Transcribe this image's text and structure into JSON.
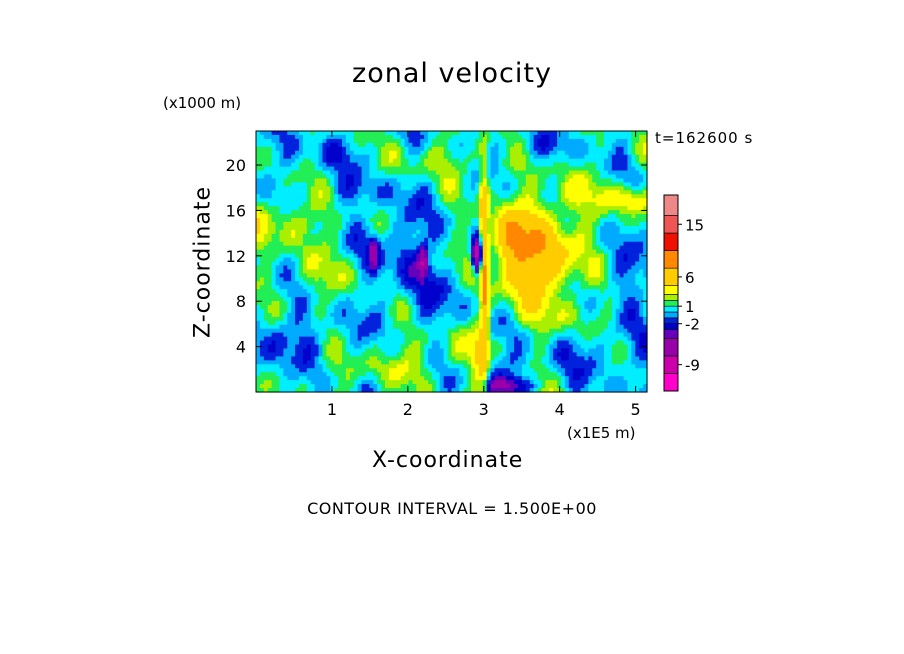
{
  "chart_data": {
    "type": "heatmap",
    "title": "zonal velocity",
    "xlabel": "X-coordinate",
    "ylabel": "Z-coordinate",
    "x_units": "(x1E5 m)",
    "y_units": "(x1000 m)",
    "time_label": "t=162600 s",
    "footer": "CONTOUR INTERVAL = 1.500E+00",
    "xlim": [
      0,
      5.15
    ],
    "ylim": [
      0,
      23
    ],
    "x_ticks": [
      "1",
      "2",
      "3",
      "4",
      "5"
    ],
    "y_ticks": [
      "4",
      "8",
      "12",
      "16",
      "20"
    ],
    "colorbar": {
      "min": -13.5,
      "max": 20,
      "levels": [
        -13.5,
        -10.5,
        -7.5,
        -4.5,
        -3,
        -2,
        -1,
        0,
        1,
        2,
        3,
        4.5,
        7.5,
        10.5,
        13.5,
        16.5,
        20
      ],
      "colors": [
        "#ff00cc",
        "#cc00aa",
        "#9900aa",
        "#6600bb",
        "#0000cc",
        "#0022dd",
        "#00aaff",
        "#00eeff",
        "#22ee55",
        "#aaee00",
        "#ffff00",
        "#ffcc00",
        "#ff8800",
        "#ee1100",
        "#ee5555",
        "#ee8888",
        "#ffbbbb"
      ],
      "tick_labels": [
        {
          "text": "15",
          "value": 15
        },
        {
          "text": "6",
          "value": 6
        },
        {
          "text": "1",
          "value": 1
        },
        {
          "text": "-2",
          "value": -2
        },
        {
          "text": "-9",
          "value": -9
        }
      ]
    },
    "field": {
      "background_value": 0.5,
      "features": [
        {
          "x": 3.7,
          "z": 12,
          "sx": 0.55,
          "sz": 4.5,
          "amp": 6.5
        },
        {
          "x": 3.35,
          "z": 13.5,
          "sx": 0.2,
          "sz": 2.2,
          "amp": 4
        },
        {
          "x": 3.0,
          "z": 10,
          "sx": 0.06,
          "sz": 9,
          "amp": 9
        },
        {
          "x": 2.92,
          "z": 12,
          "sx": 0.07,
          "sz": 1.5,
          "amp": -11
        },
        {
          "x": 2.97,
          "z": 8,
          "sx": 0.05,
          "sz": 4,
          "amp": -4
        },
        {
          "x": 2.92,
          "z": 3,
          "sx": 0.1,
          "sz": 3,
          "amp": 3.5
        },
        {
          "x": 3.3,
          "z": 0.6,
          "sx": 0.3,
          "sz": 0.8,
          "amp": -5
        },
        {
          "x": 3.2,
          "z": 2.2,
          "sx": 0.35,
          "sz": 1.2,
          "amp": -1.5
        },
        {
          "x": 0.35,
          "z": 15,
          "sx": 0.6,
          "sz": 2.2,
          "amp": 2.5
        },
        {
          "x": 0.9,
          "z": 10,
          "sx": 0.7,
          "sz": 2.5,
          "amp": 1.2
        },
        {
          "x": 1.9,
          "z": 12,
          "sx": 0.45,
          "sz": 4,
          "amp": -2.2
        },
        {
          "x": 1.55,
          "z": 12.3,
          "sx": 0.06,
          "sz": 1.2,
          "amp": -6
        },
        {
          "x": 2.2,
          "z": 11.5,
          "sx": 0.06,
          "sz": 1.3,
          "amp": -6
        },
        {
          "x": 1.35,
          "z": 17.5,
          "sx": 0.5,
          "sz": 1.5,
          "amp": -1.2
        },
        {
          "x": 2.4,
          "z": 7.5,
          "sx": 0.4,
          "sz": 3,
          "amp": -1.3
        },
        {
          "x": 2.3,
          "z": 4,
          "sx": 0.6,
          "sz": 2,
          "amp": 1.5
        },
        {
          "x": 0.6,
          "z": 5,
          "sx": 0.7,
          "sz": 2.5,
          "amp": -1.3
        },
        {
          "x": 1.6,
          "z": 2,
          "sx": 0.8,
          "sz": 1.5,
          "amp": 1.3
        },
        {
          "x": 4.2,
          "z": 6.5,
          "sx": 0.4,
          "sz": 1.5,
          "amp": 1.2
        },
        {
          "x": 4.5,
          "z": 3.5,
          "sx": 0.7,
          "sz": 2.5,
          "amp": -1.3
        },
        {
          "x": 4.95,
          "z": 17,
          "sx": 0.25,
          "sz": 1.2,
          "amp": 4
        },
        {
          "x": 4.3,
          "z": 17.5,
          "sx": 0.5,
          "sz": 2,
          "amp": 1.5
        },
        {
          "x": 4.8,
          "z": 10,
          "sx": 0.35,
          "sz": 3,
          "amp": -1.2
        },
        {
          "x": 0.1,
          "z": 2.5,
          "sx": 0.3,
          "sz": 2.5,
          "amp": -1.2
        },
        {
          "x": 2.5,
          "z": 20.5,
          "sx": 0.8,
          "sz": 1.5,
          "amp": 1.5
        },
        {
          "x": 3.6,
          "z": 21.5,
          "sx": 0.6,
          "sz": 1.2,
          "amp": -1.3
        },
        {
          "x": 1.0,
          "z": 21,
          "sx": 0.6,
          "sz": 1.5,
          "amp": -1.2
        }
      ]
    }
  }
}
